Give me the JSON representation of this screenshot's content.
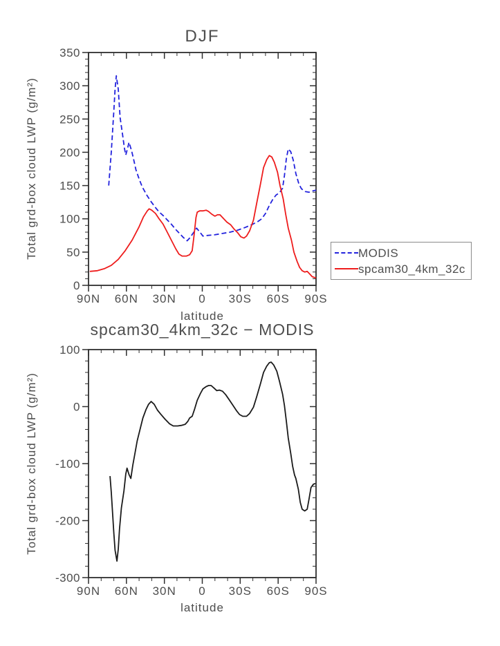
{
  "page_background": "#ffffff",
  "text_color": "#4d4d4d",
  "axis_color": "#2e2e2e",
  "chart_data": [
    {
      "type": "line",
      "title": "DJF",
      "xlabel": "latitude",
      "ylabel": "Total grd-box cloud LWP (g/m²)",
      "ylim": [
        0,
        350
      ],
      "ytick_step": 50,
      "yminor_step": 10,
      "yticks": [
        {
          "v": 0,
          "label": "0"
        },
        {
          "v": 50,
          "label": "50"
        },
        {
          "v": 100,
          "label": "100"
        },
        {
          "v": 150,
          "label": "150"
        },
        {
          "v": 200,
          "label": "200"
        },
        {
          "v": 250,
          "label": "250"
        },
        {
          "v": 300,
          "label": "300"
        },
        {
          "v": 350,
          "label": "350"
        }
      ],
      "xlim_deg": [
        90,
        -90
      ],
      "xminor_step": 10,
      "xticks": [
        {
          "v": 90,
          "label": "90N"
        },
        {
          "v": 60,
          "label": "60N"
        },
        {
          "v": 30,
          "label": "30N"
        },
        {
          "v": 0,
          "label": "0"
        },
        {
          "v": -30,
          "label": "30S"
        },
        {
          "v": -60,
          "label": "60S"
        },
        {
          "v": -90,
          "label": "90S"
        }
      ],
      "grid": false,
      "legend_position": "outside-right",
      "series": [
        {
          "name": "MODIS",
          "color": "#2222dd",
          "dash": [
            7,
            4
          ],
          "points": [
            [
              74,
              150
            ],
            [
              72,
              200
            ],
            [
              70,
              262
            ],
            [
              69,
              295
            ],
            [
              68,
              315
            ],
            [
              66.5,
              295
            ],
            [
              65,
              252
            ],
            [
              63,
              226
            ],
            [
              61.5,
              205
            ],
            [
              60.5,
              196
            ],
            [
              59,
              207
            ],
            [
              58,
              215
            ],
            [
              56,
              203
            ],
            [
              54.5,
              191
            ],
            [
              52.5,
              174
            ],
            [
              50,
              160
            ],
            [
              47.5,
              148
            ],
            [
              44,
              136
            ],
            [
              41,
              127
            ],
            [
              37.5,
              118
            ],
            [
              34.5,
              111
            ],
            [
              31,
              105
            ],
            [
              28,
              99
            ],
            [
              24.5,
              92
            ],
            [
              21,
              84
            ],
            [
              18,
              78
            ],
            [
              15,
              72
            ],
            [
              12,
              67
            ],
            [
              10,
              71
            ],
            [
              7,
              79
            ],
            [
              4.5,
              86
            ],
            [
              1.5,
              79
            ],
            [
              -0.5,
              74
            ],
            [
              -4,
              75
            ],
            [
              -10,
              76
            ],
            [
              -16,
              78
            ],
            [
              -22,
              80
            ],
            [
              -28,
              83
            ],
            [
              -34,
              87
            ],
            [
              -40,
              92
            ],
            [
              -44,
              96
            ],
            [
              -47,
              100
            ],
            [
              -50,
              108
            ],
            [
              -53,
              120
            ],
            [
              -56,
              130
            ],
            [
              -58.5,
              136
            ],
            [
              -61,
              139
            ],
            [
              -63.5,
              146
            ],
            [
              -65,
              165
            ],
            [
              -66.5,
              190
            ],
            [
              -68,
              205
            ],
            [
              -70,
              201
            ],
            [
              -72,
              188
            ],
            [
              -74,
              168
            ],
            [
              -76.5,
              152
            ],
            [
              -78.5,
              145
            ],
            [
              -81.5,
              141
            ],
            [
              -84.5,
              140
            ],
            [
              -87.5,
              142
            ],
            [
              -90,
              143
            ]
          ]
        },
        {
          "name": "spcam30_4km_32c",
          "color": "#ee1c1c",
          "dash": null,
          "points": [
            [
              89,
              21
            ],
            [
              83,
              22
            ],
            [
              77.5,
              25
            ],
            [
              72,
              30
            ],
            [
              66.5,
              39
            ],
            [
              61,
              52
            ],
            [
              55.5,
              68
            ],
            [
              50,
              88
            ],
            [
              46.5,
              103
            ],
            [
              43.5,
              112
            ],
            [
              42,
              115
            ],
            [
              40,
              113
            ],
            [
              37,
              108
            ],
            [
              34.5,
              101
            ],
            [
              31,
              92
            ],
            [
              28,
              81
            ],
            [
              24.5,
              68
            ],
            [
              21,
              55
            ],
            [
              18.5,
              47
            ],
            [
              16,
              44
            ],
            [
              12.5,
              44
            ],
            [
              10,
              46
            ],
            [
              8,
              52
            ],
            [
              6.5,
              75
            ],
            [
              5,
              102
            ],
            [
              4,
              110
            ],
            [
              2,
              112
            ],
            [
              -0.5,
              112
            ],
            [
              -3,
              113
            ],
            [
              -5,
              111
            ],
            [
              -7.5,
              107
            ],
            [
              -10,
              104
            ],
            [
              -12,
              106
            ],
            [
              -14,
              106
            ],
            [
              -17,
              100
            ],
            [
              -19.5,
              95
            ],
            [
              -22.5,
              91
            ],
            [
              -25,
              85
            ],
            [
              -28,
              79
            ],
            [
              -30.5,
              73
            ],
            [
              -33,
              71
            ],
            [
              -35,
              74
            ],
            [
              -37.5,
              82
            ],
            [
              -40.5,
              98
            ],
            [
              -43,
              123
            ],
            [
              -46,
              152
            ],
            [
              -48.5,
              177
            ],
            [
              -51,
              189
            ],
            [
              -53,
              195
            ],
            [
              -55,
              193
            ],
            [
              -57,
              185
            ],
            [
              -59.5,
              170
            ],
            [
              -61.5,
              150
            ],
            [
              -64,
              130
            ],
            [
              -66,
              107
            ],
            [
              -68,
              86
            ],
            [
              -70.5,
              68
            ],
            [
              -72.5,
              50
            ],
            [
              -75,
              36
            ],
            [
              -77,
              27
            ],
            [
              -79,
              22
            ],
            [
              -81,
              20
            ],
            [
              -83,
              21
            ],
            [
              -85,
              17
            ],
            [
              -87,
              13
            ],
            [
              -90,
              11
            ]
          ]
        }
      ]
    },
    {
      "type": "line",
      "title": "spcam30_4km_32c − MODIS",
      "xlabel": "latitude",
      "ylabel": "Total grd-box cloud LWP (g/m²)",
      "ylim": [
        -300,
        100
      ],
      "ytick_step": 100,
      "yminor_step": 20,
      "yticks": [
        {
          "v": -300,
          "label": "-300"
        },
        {
          "v": -200,
          "label": "-200"
        },
        {
          "v": -100,
          "label": "-100"
        },
        {
          "v": 0,
          "label": "0"
        },
        {
          "v": 100,
          "label": "100"
        }
      ],
      "xlim_deg": [
        90,
        -90
      ],
      "xminor_step": 10,
      "xticks": [
        {
          "v": 90,
          "label": "90N"
        },
        {
          "v": 60,
          "label": "60N"
        },
        {
          "v": 30,
          "label": "30N"
        },
        {
          "v": 0,
          "label": "0"
        },
        {
          "v": -30,
          "label": "30S"
        },
        {
          "v": -60,
          "label": "60S"
        },
        {
          "v": -90,
          "label": "90S"
        }
      ],
      "grid": false,
      "series": [
        {
          "name": "spcam30_4km_32c - MODIS",
          "color": "#1a1a1a",
          "dash": null,
          "points": [
            [
              73,
              -122
            ],
            [
              72,
              -150
            ],
            [
              71,
              -185
            ],
            [
              70,
              -222
            ],
            [
              69,
              -252
            ],
            [
              67.5,
              -271
            ],
            [
              66.5,
              -250
            ],
            [
              65.5,
              -215
            ],
            [
              64,
              -178
            ],
            [
              62,
              -148
            ],
            [
              60.5,
              -118
            ],
            [
              59.5,
              -108
            ],
            [
              58,
              -119
            ],
            [
              56.5,
              -126
            ],
            [
              55,
              -103
            ],
            [
              53.5,
              -85
            ],
            [
              51.5,
              -60
            ],
            [
              49,
              -38
            ],
            [
              47,
              -20
            ],
            [
              44.5,
              -5
            ],
            [
              42.5,
              4
            ],
            [
              40.5,
              9
            ],
            [
              38,
              4
            ],
            [
              35.5,
              -6
            ],
            [
              33,
              -13
            ],
            [
              29.5,
              -22
            ],
            [
              26,
              -30
            ],
            [
              23,
              -34
            ],
            [
              19.5,
              -34
            ],
            [
              16.5,
              -33
            ],
            [
              13.5,
              -31
            ],
            [
              11.5,
              -26
            ],
            [
              10,
              -20
            ],
            [
              8,
              -17
            ],
            [
              6,
              -4
            ],
            [
              4,
              11
            ],
            [
              1.5,
              23
            ],
            [
              -0.5,
              31
            ],
            [
              -3,
              35
            ],
            [
              -5,
              37
            ],
            [
              -7,
              37
            ],
            [
              -9.5,
              32
            ],
            [
              -11.5,
              28
            ],
            [
              -13.5,
              29
            ],
            [
              -16,
              27
            ],
            [
              -18.5,
              21
            ],
            [
              -21,
              13
            ],
            [
              -24,
              3
            ],
            [
              -27,
              -7
            ],
            [
              -29.5,
              -14
            ],
            [
              -32,
              -17
            ],
            [
              -35,
              -17
            ],
            [
              -37.5,
              -12
            ],
            [
              -40.5,
              -1
            ],
            [
              -43,
              17
            ],
            [
              -46,
              40
            ],
            [
              -48.5,
              60
            ],
            [
              -51,
              71
            ],
            [
              -53,
              77
            ],
            [
              -54.5,
              78
            ],
            [
              -56.5,
              73
            ],
            [
              -59,
              62
            ],
            [
              -61,
              45
            ],
            [
              -63.5,
              22
            ],
            [
              -65,
              2
            ],
            [
              -66.5,
              -25
            ],
            [
              -68,
              -55
            ],
            [
              -70,
              -82
            ],
            [
              -71.5,
              -105
            ],
            [
              -73,
              -120
            ],
            [
              -74,
              -126
            ],
            [
              -76,
              -145
            ],
            [
              -77.5,
              -168
            ],
            [
              -79,
              -180
            ],
            [
              -81,
              -183
            ],
            [
              -83,
              -180
            ],
            [
              -84.5,
              -162
            ],
            [
              -86,
              -142
            ],
            [
              -88,
              -136
            ],
            [
              -89.5,
              -135
            ]
          ]
        }
      ]
    }
  ],
  "legend": {
    "items": [
      {
        "label": "MODIS",
        "color": "#2222dd",
        "dash": true
      },
      {
        "label": "spcam30_4km_32c",
        "color": "#ee1c1c",
        "dash": false
      }
    ]
  }
}
